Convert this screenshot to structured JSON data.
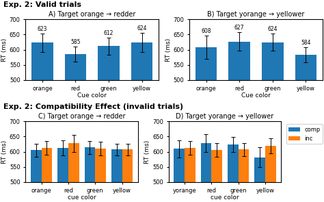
{
  "sections": [
    "Exp. 2: Valid trials",
    "Exp. 2: Compatibility Effect (invalid trials)"
  ],
  "chart_data": [
    {
      "type": "bar",
      "title": "A) Target orange → redder",
      "categories": [
        "orange",
        "red",
        "green",
        "yellow"
      ],
      "values": [
        623,
        585,
        612,
        624
      ],
      "errors": [
        30,
        25,
        28,
        32
      ],
      "data_labels": true,
      "xlabel": "Cue color",
      "ylabel": "RT (ms)",
      "ylim": [
        500,
        700
      ],
      "yticks": [
        500,
        550,
        600,
        650,
        700
      ]
    },
    {
      "type": "bar",
      "title": "B) Target yorange → yellower",
      "categories": [
        "orange",
        "red",
        "green",
        "yellow"
      ],
      "values": [
        608,
        627,
        624,
        584
      ],
      "errors": [
        38,
        30,
        28,
        25
      ],
      "data_labels": true,
      "xlabel": "Cue color",
      "ylabel": "RT (ms)",
      "ylim": [
        500,
        700
      ],
      "yticks": [
        500,
        550,
        600,
        650,
        700
      ]
    },
    {
      "type": "bar",
      "title": "C) Target orange → redder",
      "categories": [
        "orange",
        "red",
        "green",
        "yellow"
      ],
      "series": [
        {
          "name": "comp",
          "values": [
            605,
            612,
            614,
            607
          ],
          "errors": [
            22,
            25,
            22,
            20
          ]
        },
        {
          "name": "inc",
          "values": [
            612,
            628,
            610,
            607
          ],
          "errors": [
            22,
            28,
            22,
            20
          ]
        }
      ],
      "xlabel": "cue color",
      "ylabel": "RT (ms)",
      "ylim": [
        500,
        700
      ],
      "yticks": [
        500,
        550,
        600,
        650,
        700
      ]
    },
    {
      "type": "bar",
      "title": "D) Target yorange → yellower",
      "categories": [
        "yorange",
        "red",
        "green",
        "yellow"
      ],
      "series": [
        {
          "name": "comp",
          "values": [
            610,
            628,
            624,
            582
          ],
          "errors": [
            28,
            30,
            25,
            32
          ]
        },
        {
          "name": "inc",
          "values": [
            612,
            606,
            607,
            620
          ],
          "errors": [
            22,
            22,
            22,
            25
          ]
        }
      ],
      "xlabel": "cue color",
      "ylabel": "RT (ms)",
      "ylim": [
        500,
        700
      ],
      "yticks": [
        500,
        550,
        600,
        650,
        700
      ],
      "legend": "upper left"
    }
  ]
}
